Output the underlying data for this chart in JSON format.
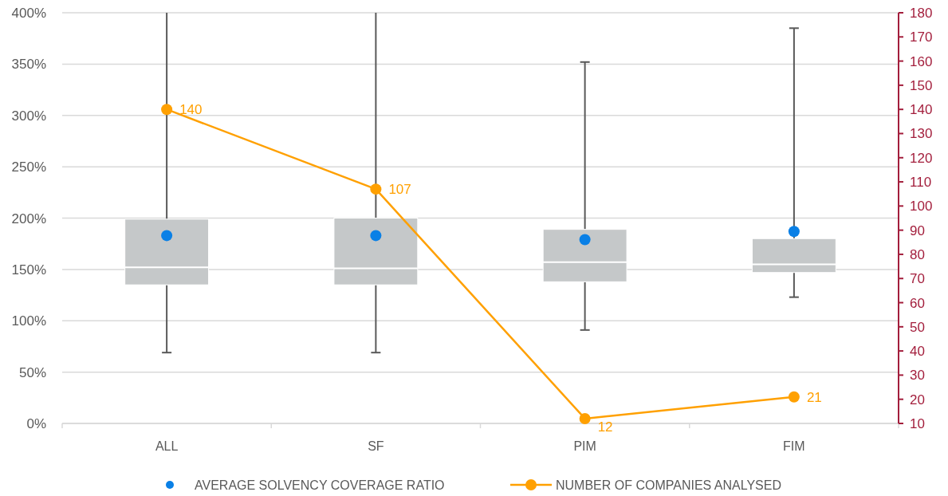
{
  "chart_data": {
    "type": "box",
    "categories": [
      "ALL",
      "SF",
      "PIM",
      "FIM"
    ],
    "series": [
      {
        "color": "#c5c8c9",
        "boxes": [
          {
            "low": 69,
            "q1": 135,
            "median": 152,
            "q3": 199,
            "high": 400
          },
          {
            "low": 69,
            "q1": 135,
            "median": 151,
            "q3": 200,
            "high": 400
          },
          {
            "low": 91,
            "q1": 138,
            "median": 157,
            "q3": 189,
            "high": 352
          },
          {
            "low": 123,
            "q1": 147,
            "median": 155,
            "q3": 180,
            "high": 385
          }
        ]
      },
      {
        "type": "scatter",
        "name": "AVERAGE SOLVENCY COVERAGE RATIO",
        "color": "#0a80e6",
        "x": [
          "ALL",
          "SF",
          "PIM",
          "FIM"
        ],
        "values": [
          183,
          183,
          179,
          187
        ]
      },
      {
        "type": "line",
        "axis": "y2",
        "name": "NUMBER OF COMPANIES ANALYSED",
        "color": "#ffa000",
        "marker": "circle",
        "values": [
          140,
          107,
          12,
          21
        ],
        "value_labels": [
          "140",
          "107",
          "12",
          "21"
        ]
      }
    ],
    "ylim": [
      0,
      400
    ],
    "yticks": [
      {
        "value": 0,
        "label": "0%"
      },
      {
        "value": 50,
        "label": "50%"
      },
      {
        "value": 100,
        "label": "100%"
      },
      {
        "value": 150,
        "label": "150%"
      },
      {
        "value": 200,
        "label": "200%"
      },
      {
        "value": 250,
        "label": "250%"
      },
      {
        "value": 300,
        "label": "300%"
      },
      {
        "value": 350,
        "label": "350%"
      },
      {
        "value": 400,
        "label": "400%"
      }
    ],
    "y2lim": [
      10,
      180
    ],
    "y2ticks": [
      10,
      20,
      30,
      40,
      50,
      60,
      70,
      80,
      90,
      100,
      110,
      120,
      130,
      140,
      150,
      160,
      170,
      180
    ],
    "grid": "y",
    "legend": "bottom"
  }
}
